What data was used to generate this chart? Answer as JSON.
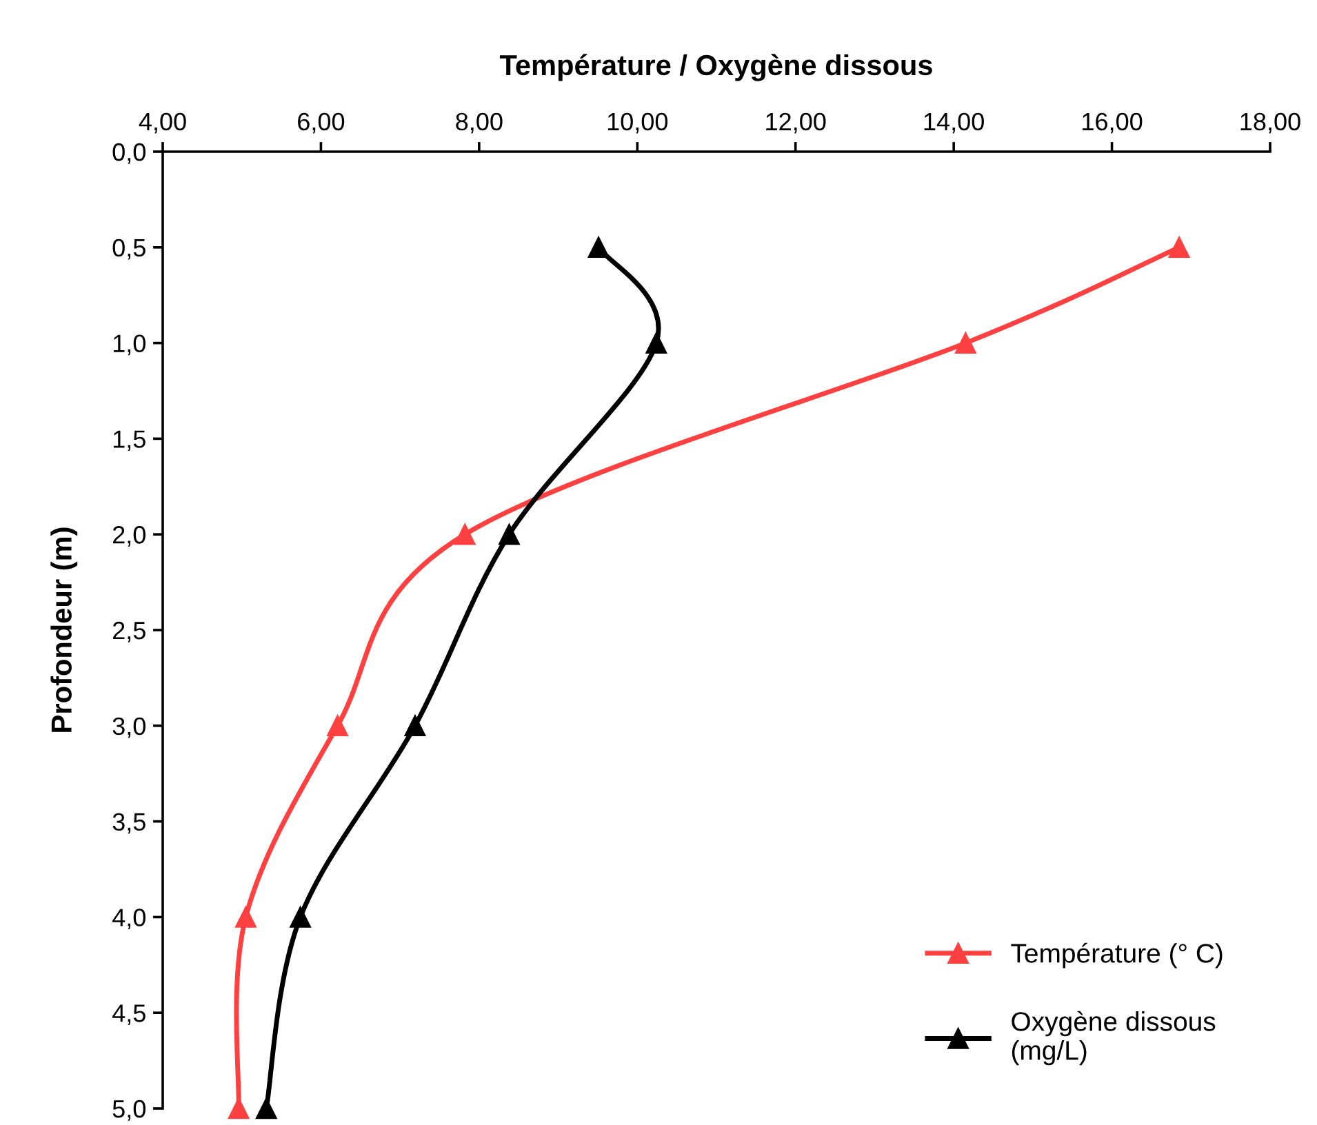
{
  "chart_data": {
    "type": "line",
    "title": "Température / Oxygène dissous",
    "ylabel": "Profondeur (m)",
    "xlim": [
      4,
      18
    ],
    "xticks": [
      {
        "value": 4,
        "label": "4,00"
      },
      {
        "value": 6,
        "label": "6,00"
      },
      {
        "value": 8,
        "label": "8,00"
      },
      {
        "value": 10,
        "label": "10,00"
      },
      {
        "value": 12,
        "label": "12,00"
      },
      {
        "value": 14,
        "label": "14,00"
      },
      {
        "value": 16,
        "label": "16,00"
      },
      {
        "value": 18,
        "label": "18,00"
      }
    ],
    "ylim": [
      5,
      0
    ],
    "yticks": [
      {
        "value": 0,
        "label": "0,0"
      },
      {
        "value": 0.5,
        "label": "0,5"
      },
      {
        "value": 1,
        "label": "1,0"
      },
      {
        "value": 1.5,
        "label": "1,5"
      },
      {
        "value": 2,
        "label": "2,0"
      },
      {
        "value": 2.5,
        "label": "2,5"
      },
      {
        "value": 3,
        "label": "3,0"
      },
      {
        "value": 3.5,
        "label": "3,5"
      },
      {
        "value": 4,
        "label": "4,0"
      },
      {
        "value": 4.5,
        "label": "4,5"
      },
      {
        "value": 5,
        "label": "5,0"
      }
    ],
    "marker": "triangle",
    "line_style": "solid",
    "grid": false,
    "legend": "bottom right",
    "series": [
      {
        "name": "Température (° C)",
        "color": "#ff4040",
        "x": [
          16.85,
          14.15,
          7.82,
          6.21,
          5.05,
          4.96
        ],
        "values": [
          0.5,
          1.0,
          2.0,
          3.0,
          4.0,
          5.0
        ]
      },
      {
        "name": "Oxygène dissous\n(mg/L)",
        "color": "#000000",
        "x": [
          9.51,
          10.24,
          8.38,
          7.19,
          5.74,
          5.31
        ],
        "values": [
          0.5,
          1.0,
          2.0,
          3.0,
          4.0,
          5.0
        ]
      }
    ]
  }
}
